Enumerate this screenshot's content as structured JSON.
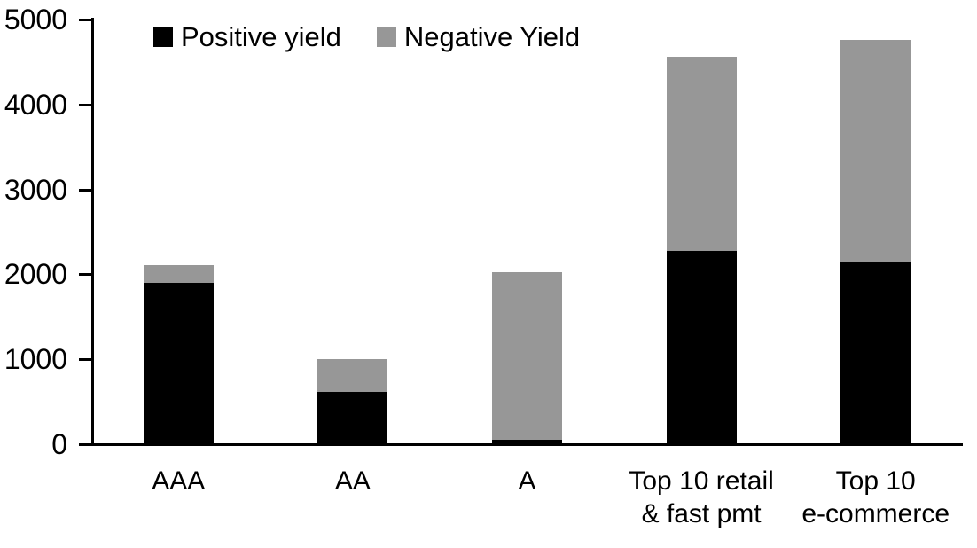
{
  "chart_data": {
    "type": "bar",
    "stacked": true,
    "title": "",
    "xlabel": "",
    "ylabel": "",
    "categories": [
      "AAA",
      "AA",
      "A",
      "Top 10 retail\n& fast pmt",
      "Top 10\ne-commerce"
    ],
    "series": [
      {
        "name": "Positive yield",
        "color": "#000000",
        "values": [
          1900,
          620,
          50,
          2280,
          2140
        ]
      },
      {
        "name": "Negative Yield",
        "color": "#979797",
        "values": [
          210,
          380,
          1980,
          2280,
          2620
        ]
      }
    ],
    "totals": [
      2110,
      1000,
      2030,
      4560,
      4760
    ],
    "ylim": [
      0,
      5000
    ],
    "yticks": [
      0,
      1000,
      2000,
      3000,
      4000,
      5000
    ],
    "grid": false,
    "legend_position": "top"
  },
  "colors": {
    "axis": "#000000",
    "background": "#ffffff",
    "positive_series": "#000000",
    "negative_series": "#979797"
  }
}
